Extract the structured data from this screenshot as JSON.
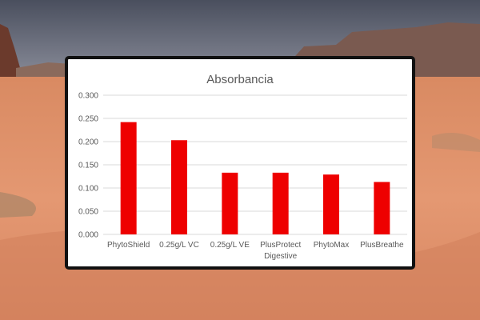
{
  "colors": {
    "bar": "#ee0000",
    "grid": "#d9d9d9",
    "frame": "#111111"
  },
  "chart_data": {
    "type": "bar",
    "title": "Absorbancia",
    "xlabel": "",
    "ylabel": "",
    "categories": [
      "PhytoShield",
      "0.25g/L VC",
      "0.25g/L VE",
      "PlusProtect Digestive",
      "PhytoMax",
      "PlusBreathe"
    ],
    "category_lines": [
      [
        "PhytoShield"
      ],
      [
        "0.25g/L VC"
      ],
      [
        "0.25g/L VE"
      ],
      [
        "PlusProtect",
        "Digestive"
      ],
      [
        "PhytoMax"
      ],
      [
        "PlusBreathe"
      ]
    ],
    "values": [
      0.242,
      0.203,
      0.133,
      0.133,
      0.129,
      0.113
    ],
    "ylim": [
      0,
      0.3
    ],
    "yticks": [
      "0.000",
      "0.050",
      "0.100",
      "0.150",
      "0.200",
      "0.250",
      "0.300"
    ],
    "grid": true,
    "legend": "none"
  }
}
